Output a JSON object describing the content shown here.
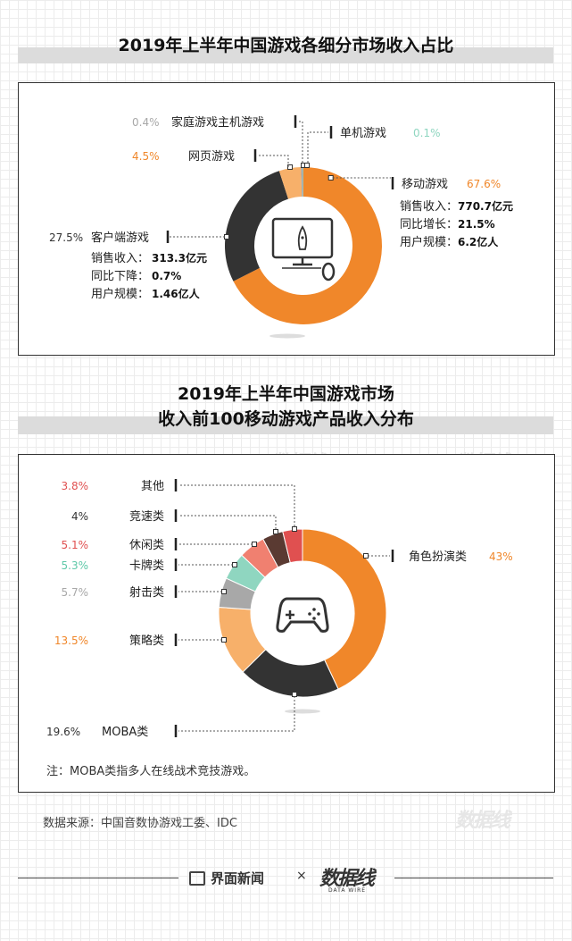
{
  "chart_data": [
    {
      "type": "pie",
      "title": "2019年上半年中国游戏各细分市场收入占比",
      "slices": [
        {
          "name": "移动游戏",
          "pct_label": "67.6%",
          "value": 67.6,
          "color": "#f0872a",
          "details": [
            {
              "label": "销售收入：",
              "value": "770.7亿元"
            },
            {
              "label": "同比增长：",
              "value": "21.5%"
            },
            {
              "label": "用户规模：",
              "value": "6.2亿人"
            }
          ]
        },
        {
          "name": "客户端游戏",
          "pct_label": "27.5%",
          "value": 27.5,
          "color": "#333333",
          "details": [
            {
              "label": "销售收入：",
              "value": "313.3亿元"
            },
            {
              "label": "同比下降：",
              "value": "0.7%"
            },
            {
              "label": "用户规模：",
              "value": "1.46亿人"
            }
          ]
        },
        {
          "name": "网页游戏",
          "pct_label": "4.5%",
          "value": 4.5,
          "color": "#f7b06a"
        },
        {
          "name": "家庭游戏主机游戏",
          "pct_label": "0.4%",
          "value": 0.4,
          "color": "#a8a8a8"
        },
        {
          "name": "单机游戏",
          "pct_label": "0.1%",
          "value": 0.1,
          "color": "#8fd6c0"
        }
      ]
    },
    {
      "type": "pie",
      "title_lines": [
        "2019年上半年中国游戏市场",
        "收入前100移动游戏产品收入分布"
      ],
      "slices": [
        {
          "name": "角色扮演类",
          "pct_label": "43%",
          "value": 43,
          "color": "#f0872a"
        },
        {
          "name": "MOBA类",
          "pct_label": "19.6%",
          "value": 19.6,
          "color": "#333333"
        },
        {
          "name": "策略类",
          "pct_label": "13.5%",
          "value": 13.5,
          "color": "#f7b06a"
        },
        {
          "name": "射击类",
          "pct_label": "5.7%",
          "value": 5.7,
          "color": "#a8a8a8"
        },
        {
          "name": "卡牌类",
          "pct_label": "5.3%",
          "value": 5.3,
          "color": "#8fd6c0"
        },
        {
          "name": "休闲类",
          "pct_label": "5.1%",
          "value": 5.1,
          "color": "#f08070"
        },
        {
          "name": "竞速类",
          "pct_label": "4%",
          "value": 4,
          "color": "#5a3a32"
        },
        {
          "name": "其他",
          "pct_label": "3.8%",
          "value": 3.8,
          "color": "#e05050"
        }
      ]
    }
  ],
  "note": "注：MOBA类指多人在线战术竞技游戏。",
  "source": "数据来源：中国音数协游戏工委、IDC",
  "footer": {
    "brand": "界面新闻",
    "times": "×",
    "logo": "数据线",
    "logo_sub": "DATA WIRE"
  },
  "colors": {
    "orange": "#f0872a",
    "teal": "#8fd6c0",
    "gray": "#a8a8a8",
    "red": "#e05050",
    "dark": "#333333"
  },
  "icons": [
    "computer-rocket-icon",
    "gamepad-icon"
  ]
}
